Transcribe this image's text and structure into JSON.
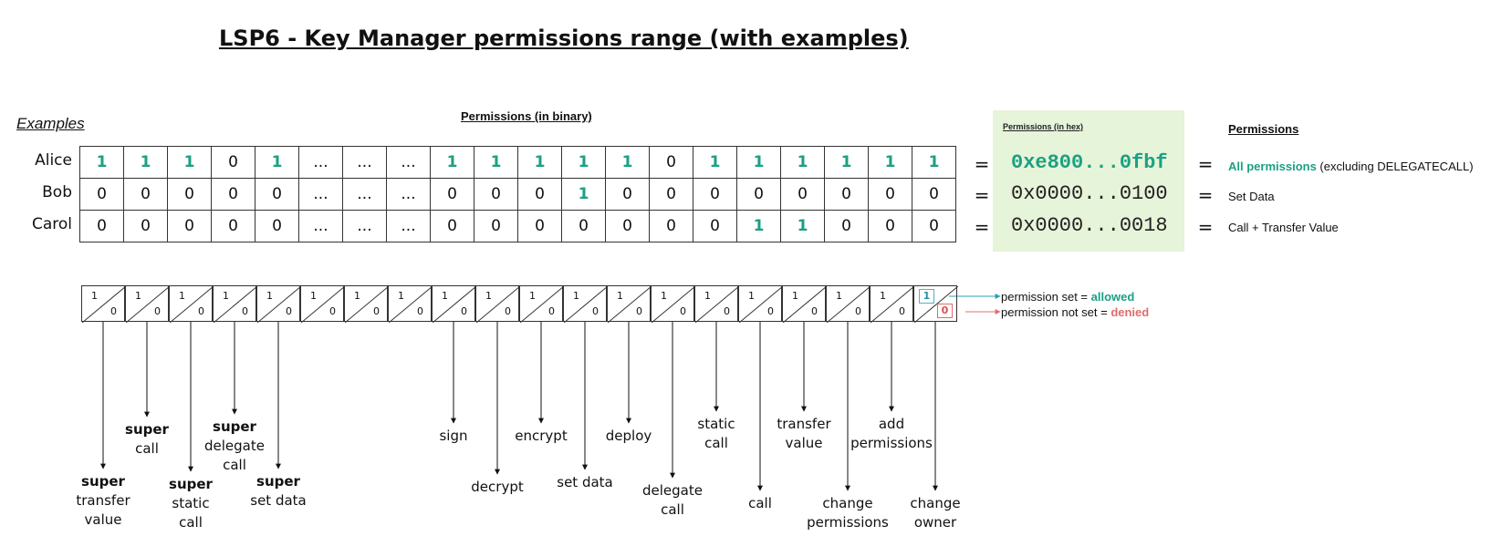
{
  "title": "LSP6 - Key Manager permissions range (with examples)",
  "examples_label": "Examples",
  "permissions_binary_title": "Permissions (in binary)",
  "permissions_hex_title": "Permissions (in hex)",
  "permissions_title": "Permissions",
  "rows": [
    {
      "name": "Alice",
      "bits": [
        "1",
        "1",
        "1",
        "0",
        "1",
        "...",
        "...",
        "...",
        "1",
        "1",
        "1",
        "1",
        "1",
        "0",
        "1",
        "1",
        "1",
        "1",
        "1",
        "1"
      ],
      "hex": "0xe800...0fbf",
      "desc_highlight": "All permissions",
      "desc_rest": " (excluding DELEGATECALL)"
    },
    {
      "name": "Bob",
      "bits": [
        "0",
        "0",
        "0",
        "0",
        "0",
        "...",
        "...",
        "...",
        "0",
        "0",
        "0",
        "1",
        "0",
        "0",
        "0",
        "0",
        "0",
        "0",
        "0",
        "0"
      ],
      "hex": "0x0000...0100",
      "desc_highlight": "",
      "desc_rest": "Set Data"
    },
    {
      "name": "Carol",
      "bits": [
        "0",
        "0",
        "0",
        "0",
        "0",
        "...",
        "...",
        "...",
        "0",
        "0",
        "0",
        "0",
        "0",
        "0",
        "0",
        "1",
        "1",
        "0",
        "0",
        "0"
      ],
      "hex": "0x0000...0018",
      "desc_highlight": "",
      "desc_rest": "Call + Transfer Value"
    }
  ],
  "equals_sign": "=",
  "legend": {
    "cell_one": "1",
    "cell_zero": "0",
    "set_text": "permission set = ",
    "set_value": "allowed",
    "not_set_text": "permission not set = ",
    "not_set_value": "denied"
  },
  "bit_labels": [
    {
      "bold": "super",
      "rest": [
        "transfer",
        "value"
      ]
    },
    {
      "bold": "super",
      "rest": [
        "call"
      ]
    },
    {
      "bold": "super",
      "rest": [
        "static",
        "call"
      ]
    },
    {
      "bold": "super",
      "rest": [
        "delegate",
        "call"
      ]
    },
    {
      "bold": "super",
      "rest": [
        "set data"
      ]
    },
    null,
    null,
    null,
    {
      "bold": "",
      "rest": [
        "sign"
      ]
    },
    {
      "bold": "",
      "rest": [
        "decrypt"
      ]
    },
    {
      "bold": "",
      "rest": [
        "encrypt"
      ]
    },
    {
      "bold": "",
      "rest": [
        "set data"
      ]
    },
    {
      "bold": "",
      "rest": [
        "deploy"
      ]
    },
    {
      "bold": "",
      "rest": [
        "delegate",
        "call"
      ]
    },
    {
      "bold": "",
      "rest": [
        "static",
        "call"
      ]
    },
    {
      "bold": "",
      "rest": [
        "call"
      ]
    },
    {
      "bold": "",
      "rest": [
        "transfer",
        "value"
      ]
    },
    {
      "bold": "",
      "rest": [
        "change",
        "permissions"
      ]
    },
    {
      "bold": "",
      "rest": [
        "add",
        "permissions"
      ]
    },
    {
      "bold": "",
      "rest": [
        "change",
        "owner"
      ]
    }
  ],
  "colors": {
    "set": "#1aa182",
    "legend_one": "#4fb3c9",
    "legend_zero": "#e06c6c",
    "hex_box": "#e6f4d9"
  }
}
